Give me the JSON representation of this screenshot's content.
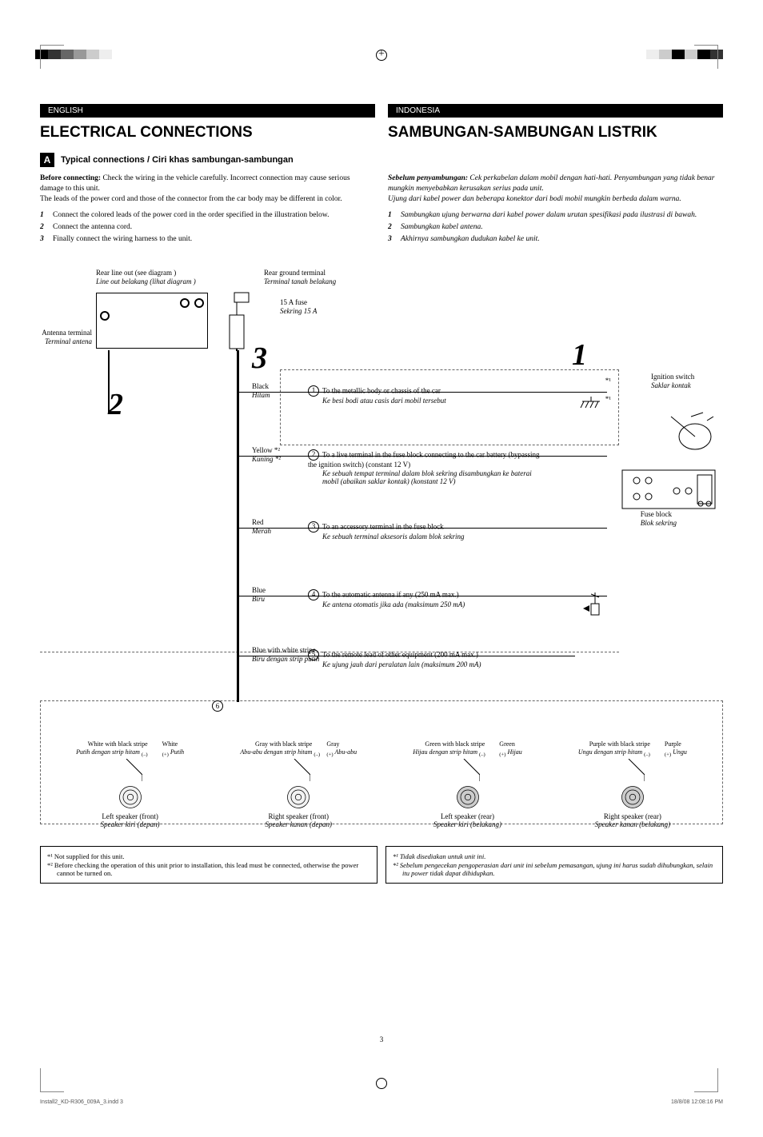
{
  "header": {
    "lang_en": "ENGLISH",
    "lang_id": "INDONESIA",
    "title_en": "ELECTRICAL CONNECTIONS",
    "title_id": "SAMBUNGAN-SAMBUNGAN LISTRIK",
    "section_letter": "A",
    "section_title": "Typical connections / Ciri khas sambungan-sambungan"
  },
  "intro_en": {
    "before_label": "Before connecting:",
    "before_text": " Check the wiring in the vehicle carefully. Incorrect connection may cause serious damage to this unit.",
    "leads_text": "The leads of the power cord and those of the connector from the car body may be different in color.",
    "steps": [
      "Connect the colored leads of the power cord in the order specified in the illustration below.",
      "Connect the antenna cord.",
      "Finally connect the wiring harness to the unit."
    ]
  },
  "intro_id": {
    "before_label": "Sebelum penyambungan:",
    "before_text": " Cek perkabelan dalam mobil dengan hati-hati. Penyambungan yang tidak benar mungkin menyebabkan kerusakan serius pada unit.",
    "leads_text": "Ujung dari kabel power dan beberapa konektor dari bodi mobil mungkin berbeda dalam warna.",
    "steps": [
      "Sambungkan ujung berwarna dari kabel power dalam urutan spesifikasi pada ilustrasi di bawah.",
      "Sambungkan kabel antena.",
      "Akhirnya sambungkan dudukan kabel ke unit."
    ]
  },
  "diagram": {
    "rear_line_en": "Rear line out (see diagram   )",
    "rear_line_id": "Line out belakang (lihat diagram   )",
    "rear_ground_en": "Rear ground terminal",
    "rear_ground_id": "Terminal tanah belakang",
    "antenna_en": "Antenna terminal",
    "antenna_id": "Terminal antena",
    "fuse_en": "15 A fuse",
    "fuse_id": "Sekring 15 A",
    "ignition_en": "Ignition switch",
    "ignition_id": "Saklar kontak",
    "fuseblock_en": "Fuse block",
    "fuseblock_id": "Blok sekring",
    "big_steps": {
      "one": "1",
      "two": "2",
      "three": "3"
    },
    "wires": [
      {
        "color_en": "Black",
        "color_id": "Hitam",
        "num": "1",
        "desc_en": "To the metallic body or chassis of the car",
        "desc_id": "Ke besi bodi atau casis dari mobil tersebut"
      },
      {
        "color_en": "Yellow *²",
        "color_id": "Kuning *²",
        "num": "2",
        "desc_en": "To a live terminal in the fuse block connecting to the car battery (bypassing the ignition switch) (constant 12 V)",
        "desc_id": "Ke sebuah tempat terminal dalam blok sekring disambungkan ke baterai mobil (abaikan saklar kontak) (konstant 12 V)"
      },
      {
        "color_en": "Red",
        "color_id": "Merah",
        "num": "3",
        "desc_en": "To an accessory terminal in the fuse block",
        "desc_id": "Ke sebuah terminal aksesoris dalam blok sekring"
      },
      {
        "color_en": "Blue",
        "color_id": "Biru",
        "num": "4",
        "desc_en": "To the automatic antenna if any (250 mA max.)",
        "desc_id": "Ke antena otomatis jika ada (maksimum 250 mA)"
      },
      {
        "color_en": "Blue with white stripe",
        "color_id": "Biru dengan strip putih",
        "num": "5",
        "desc_en": "To the remote lead of other equipment (200 mA max.)",
        "desc_id": "Ke ujung jauh dari peralatan lain (maksimum 200 mA)"
      }
    ],
    "circ6": "6",
    "speakers": [
      {
        "neg_en": "White with black stripe",
        "neg_id": "Putih dengan strip hitam",
        "pos_en": "White",
        "pos_id": "Putih",
        "label_en": "Left speaker (front)",
        "label_id": "Speaker kiri (depan)"
      },
      {
        "neg_en": "Gray with black stripe",
        "neg_id": "Abu-abu dengan strip hitam",
        "pos_en": "Gray",
        "pos_id": "Abu-abu",
        "label_en": "Right speaker (front)",
        "label_id": "Speaker kanan (depan)"
      },
      {
        "neg_en": "Green with black stripe",
        "neg_id": "Hijau dengan strip hitam",
        "pos_en": "Green",
        "pos_id": "Hijau",
        "label_en": "Left speaker (rear)",
        "label_id": "Speaker kiri (belakang)",
        "hatched": true
      },
      {
        "neg_en": "Purple with black stripe",
        "neg_id": "Ungu dengan strip hitam",
        "pos_en": "Purple",
        "pos_id": "Ungu",
        "label_en": "Right speaker (rear)",
        "label_id": "Speaker kanan (belakang)",
        "hatched": true
      }
    ]
  },
  "footnotes_en": [
    "*¹  Not supplied for this unit.",
    "*²  Before checking the operation of this unit prior to installation, this lead must be connected, otherwise the power cannot be turned on."
  ],
  "footnotes_id": [
    "*¹  Tidak disediakan untuk unit ini.",
    "*²  Sebelum pengecekan pengoperasian dari unit ini sebelum pemasangan, ujung ini harus sudah dihubungkan, selain itu power tidak dapat dihidupkan."
  ],
  "footer": {
    "page_num": "3",
    "file": "Install2_KD-R306_009A_3.indd   3",
    "timestamp": "18/8/08   12:08:16 PM"
  }
}
